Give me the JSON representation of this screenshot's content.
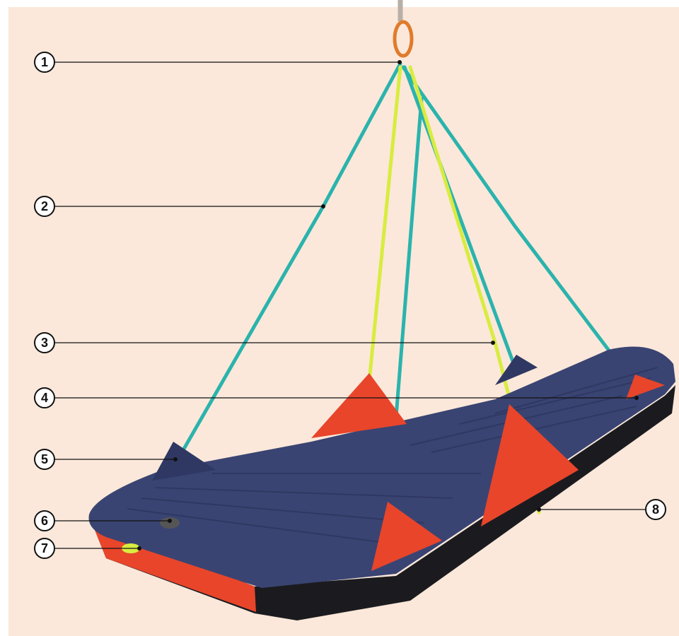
{
  "callouts": [
    {
      "label": "1"
    },
    {
      "label": "2"
    },
    {
      "label": "3"
    },
    {
      "label": "4"
    },
    {
      "label": "5"
    },
    {
      "label": "6"
    },
    {
      "label": "7"
    },
    {
      "label": "8"
    }
  ]
}
